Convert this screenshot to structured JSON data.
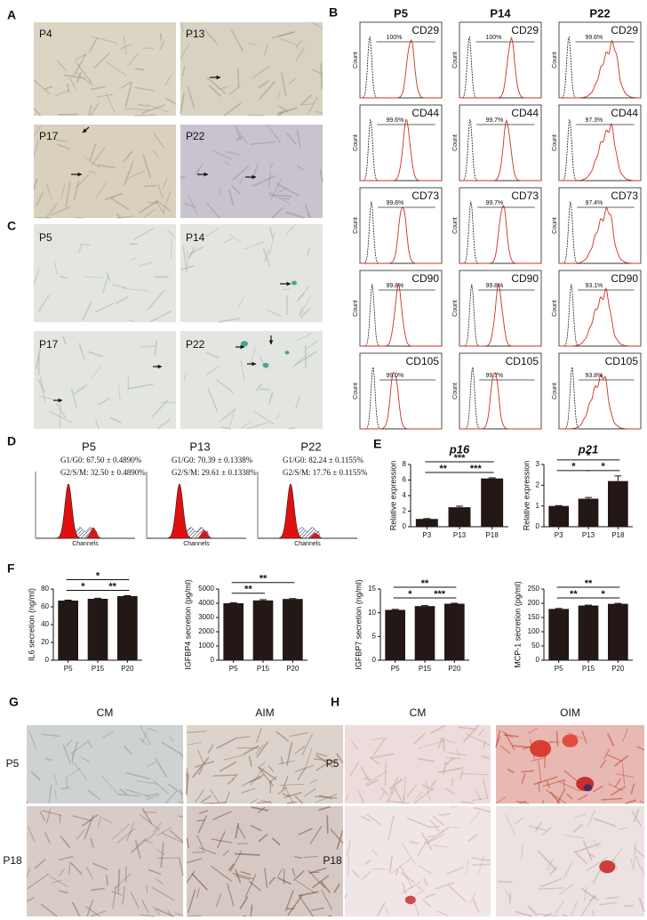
{
  "panels": {
    "A": {
      "letter": "A",
      "images": [
        "P4",
        "P13",
        "P17",
        "P22"
      ]
    },
    "B": {
      "letter": "B",
      "columns": [
        "P5",
        "P14",
        "P22"
      ],
      "markers": [
        "CD29",
        "CD44",
        "CD73",
        "CD90",
        "CD105"
      ],
      "percents": [
        [
          "100%",
          "100%",
          "99.6%"
        ],
        [
          "99.6%",
          "99.7%",
          "97.3%"
        ],
        [
          "99.8%",
          "99.7%",
          "97.4%"
        ],
        [
          "99.8%",
          "99.8%",
          "93.1%"
        ],
        [
          "99.0%",
          "99.7%",
          "93.8%"
        ]
      ],
      "y_label": "Count"
    },
    "C": {
      "letter": "C",
      "images": [
        "P5",
        "P14",
        "P17",
        "P22"
      ]
    },
    "D": {
      "letter": "D",
      "x_label": "Channels",
      "samples": [
        {
          "name": "P5",
          "g1": "G1/G0: 67.50 ± 0.4890%",
          "g2": "G2/S/M: 32.50 ± 0.4890%"
        },
        {
          "name": "P13",
          "g1": "G1/G0: 70.39 ± 0.1338%",
          "g2": "G2/S/M: 29.61 ± 0.1338%"
        },
        {
          "name": "P22",
          "g1": "G1/G0: 82.24 ± 0.1155%",
          "g2": "G2/S/M: 17.76 ± 0.1155%"
        }
      ]
    },
    "E": {
      "letter": "E",
      "charts": [
        {
          "type": "bar",
          "title": "p16",
          "y_label": "Relative expression",
          "categories": [
            "P3",
            "P13",
            "P18"
          ],
          "values": [
            1,
            2.5,
            6.2
          ],
          "errors": [
            0.05,
            0.15,
            0.08
          ],
          "ylim": [
            0,
            8
          ],
          "yticks": [
            0,
            2,
            4,
            6,
            8
          ],
          "color": "#231815",
          "significance": {
            "left": "**",
            "right": "***",
            "span": "***"
          }
        },
        {
          "type": "bar",
          "title": "p21",
          "y_label": "Relative expression",
          "categories": [
            "P3",
            "P13",
            "P18"
          ],
          "values": [
            1,
            1.35,
            2.2
          ],
          "errors": [
            0.02,
            0.06,
            0.25
          ],
          "ylim": [
            0,
            3
          ],
          "yticks": [
            0,
            1,
            2,
            3
          ],
          "color": "#231815",
          "significance": {
            "left": "*",
            "right": "*",
            "span": "*"
          }
        }
      ]
    },
    "F": {
      "letter": "F",
      "charts": [
        {
          "type": "bar",
          "y_label": "IL6 secretion (ng/ml)",
          "categories": [
            "P5",
            "P15",
            "P20"
          ],
          "values": [
            67,
            69,
            72
          ],
          "errors": [
            0.5,
            0.6,
            0.5
          ],
          "ylim": [
            0,
            80
          ],
          "yticks": [
            0,
            20,
            40,
            60,
            80
          ],
          "color": "#231815",
          "significance": {
            "left": "*",
            "right": "**",
            "span": "*"
          }
        },
        {
          "type": "bar",
          "y_label": "IGFBP4 secretion (pg/ml)",
          "categories": [
            "P5",
            "P15",
            "P20"
          ],
          "values": [
            4000,
            4200,
            4300
          ],
          "errors": [
            40,
            50,
            30
          ],
          "ylim": [
            0,
            5000
          ],
          "yticks": [
            0,
            1000,
            2000,
            3000,
            4000,
            5000
          ],
          "color": "#231815",
          "significance": {
            "left": "**",
            "span": "**"
          }
        },
        {
          "type": "bar",
          "y_label": "IGFBP7 secretion (ng/ml)",
          "categories": [
            "P5",
            "P15",
            "P20"
          ],
          "values": [
            10.6,
            11.4,
            11.9
          ],
          "errors": [
            0.1,
            0.1,
            0.1
          ],
          "ylim": [
            0,
            15
          ],
          "yticks": [
            0,
            5,
            10,
            15
          ],
          "color": "#231815",
          "significance": {
            "left": "*",
            "right": "***",
            "span": "**"
          }
        },
        {
          "type": "bar",
          "y_label": "MCP-1 secretion (pg/ml)",
          "categories": [
            "P5",
            "P15",
            "P20"
          ],
          "values": [
            180,
            192,
            198
          ],
          "errors": [
            1.5,
            1.5,
            1.5
          ],
          "ylim": [
            0,
            250
          ],
          "yticks": [
            0,
            50,
            100,
            150,
            200,
            250
          ],
          "color": "#231815",
          "significance": {
            "left": "**",
            "right": "*",
            "span": "**"
          }
        }
      ]
    },
    "G": {
      "letter": "G",
      "columns": [
        "CM",
        "AIM"
      ],
      "rows": [
        "P5",
        "P18"
      ]
    },
    "H": {
      "letter": "H",
      "columns": [
        "CM",
        "OIM"
      ],
      "rows": [
        "P5",
        "P18"
      ]
    }
  }
}
